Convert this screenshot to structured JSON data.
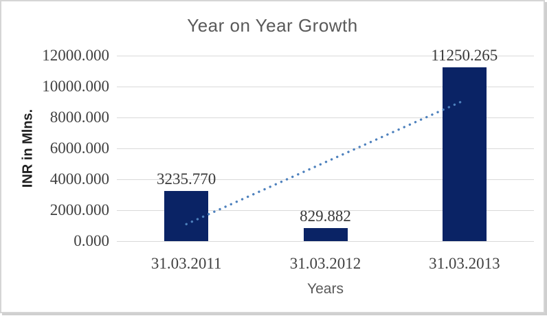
{
  "chart_data": {
    "type": "bar",
    "title": "Year on Year Growth",
    "categories": [
      "31.03.2011",
      "31.03.2012",
      "31.03.2013"
    ],
    "values": [
      3235.77,
      829.882,
      11250.265
    ],
    "data_labels": [
      "3235.770",
      "829.882",
      "11250.265"
    ],
    "xlabel": "Years",
    "ylabel": "INR in Mlns.",
    "ylim": [
      0,
      12000
    ],
    "ytick_step": 2000,
    "ytick_labels": [
      "12000.000",
      "10000.000",
      "8000.000",
      "6000.000",
      "4000.000",
      "2000.000",
      "0.000"
    ],
    "grid": true,
    "legend": "none",
    "trendline": {
      "type": "linear",
      "style": "dotted",
      "color": "#4E81BD"
    },
    "colors": {
      "bar": "#0A2365",
      "gridline": "#D9D9D9",
      "title_text": "#595959",
      "tick_text": "#404040",
      "border": "#D5D5D5",
      "background": "#FFFFFF"
    }
  }
}
